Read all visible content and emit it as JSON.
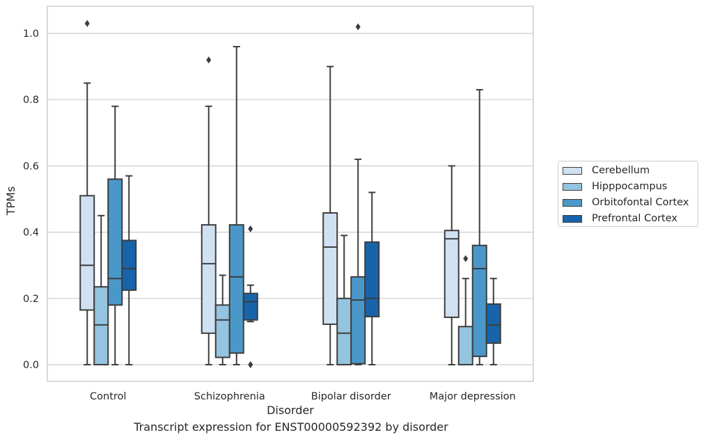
{
  "caption": "Transcript expression for ENST00000592392 by disorder",
  "chart_data": {
    "type": "box",
    "title": "",
    "xlabel": "Disorder",
    "ylabel": "TPMs",
    "categories": [
      "Control",
      "Schizophrenia",
      "Bipolar disorder",
      "Major depression"
    ],
    "ylim": [
      -0.05,
      1.08
    ],
    "yticks": [
      "0.0",
      "0.2",
      "0.4",
      "0.6",
      "0.8",
      "1.0"
    ],
    "ytick_values": [
      0.0,
      0.2,
      0.4,
      0.6,
      0.8,
      1.0
    ],
    "grid": true,
    "legend_position": "right",
    "series": [
      {
        "name": "Cerebellum",
        "color": "#d0e1f2",
        "boxes": [
          {
            "whislo": 0.0,
            "q1": 0.165,
            "med": 0.3,
            "q3": 0.51,
            "whishi": 0.85,
            "fliers": [
              1.03
            ]
          },
          {
            "whislo": 0.0,
            "q1": 0.095,
            "med": 0.305,
            "q3": 0.422,
            "whishi": 0.78,
            "fliers": [
              0.92
            ]
          },
          {
            "whislo": 0.0,
            "q1": 0.122,
            "med": 0.355,
            "q3": 0.458,
            "whishi": 0.9,
            "fliers": []
          },
          {
            "whislo": 0.0,
            "q1": 0.143,
            "med": 0.38,
            "q3": 0.405,
            "whishi": 0.6,
            "fliers": []
          }
        ]
      },
      {
        "name": "Hipppocampus",
        "color": "#94c4df",
        "boxes": [
          {
            "whislo": 0.0,
            "q1": 0.0,
            "med": 0.12,
            "q3": 0.235,
            "whishi": 0.45,
            "fliers": []
          },
          {
            "whislo": 0.0,
            "q1": 0.022,
            "med": 0.135,
            "q3": 0.18,
            "whishi": 0.27,
            "fliers": []
          },
          {
            "whislo": 0.0,
            "q1": 0.0,
            "med": 0.095,
            "q3": 0.2,
            "whishi": 0.39,
            "fliers": []
          },
          {
            "whislo": 0.0,
            "q1": 0.0,
            "med": 0.0,
            "q3": 0.115,
            "whishi": 0.26,
            "fliers": [
              0.32
            ]
          }
        ]
      },
      {
        "name": "Orbitofontal Cortex",
        "color": "#4a98c9",
        "boxes": [
          {
            "whislo": 0.0,
            "q1": 0.18,
            "med": 0.26,
            "q3": 0.56,
            "whishi": 0.78,
            "fliers": []
          },
          {
            "whislo": 0.0,
            "q1": 0.035,
            "med": 0.265,
            "q3": 0.422,
            "whishi": 0.96,
            "fliers": []
          },
          {
            "whislo": 0.0,
            "q1": 0.003,
            "med": 0.195,
            "q3": 0.265,
            "whishi": 0.62,
            "fliers": [
              1.02
            ]
          },
          {
            "whislo": 0.0,
            "q1": 0.025,
            "med": 0.29,
            "q3": 0.36,
            "whishi": 0.83,
            "fliers": []
          }
        ]
      },
      {
        "name": "Prefrontal Cortex",
        "color": "#1764ab",
        "boxes": [
          {
            "whislo": 0.0,
            "q1": 0.225,
            "med": 0.29,
            "q3": 0.375,
            "whishi": 0.57,
            "fliers": []
          },
          {
            "whislo": 0.13,
            "q1": 0.135,
            "med": 0.19,
            "q3": 0.215,
            "whishi": 0.24,
            "fliers": [
              0.41,
              0.0,
              0.0
            ]
          },
          {
            "whislo": 0.0,
            "q1": 0.145,
            "med": 0.2,
            "q3": 0.37,
            "whishi": 0.52,
            "fliers": []
          },
          {
            "whislo": 0.0,
            "q1": 0.065,
            "med": 0.12,
            "q3": 0.183,
            "whishi": 0.26,
            "fliers": []
          }
        ]
      }
    ]
  }
}
